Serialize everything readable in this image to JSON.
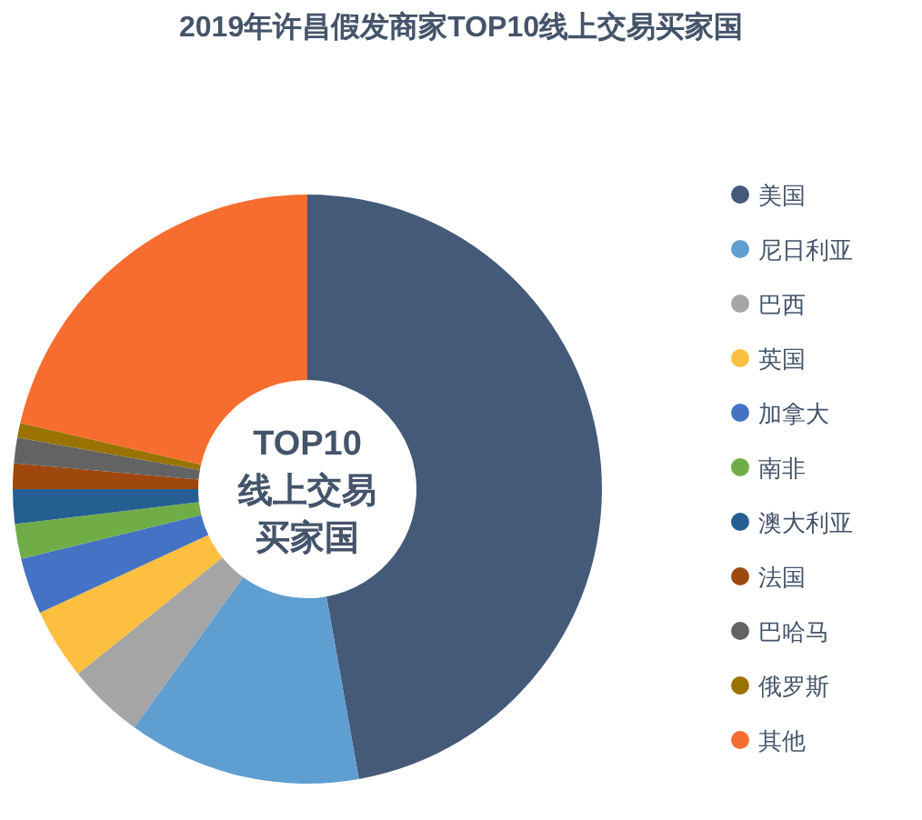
{
  "chart_data": {
    "type": "donut",
    "title": "2019年许昌假发商家TOP10线上交易买家国",
    "categories": [
      "美国",
      "尼日利亚",
      "巴西",
      "英国",
      "加拿大",
      "南非",
      "澳大利亚",
      "法国",
      "巴哈马",
      "俄罗斯",
      "其他"
    ],
    "values": [
      47.2,
      12.8,
      4.2,
      3.9,
      3.1,
      1.9,
      1.9,
      1.4,
      1.4,
      0.8,
      21.4
    ],
    "colors": [
      "#455a78",
      "#5f9ed1",
      "#a5a5a5",
      "#fcbf40",
      "#4472c4",
      "#70ad47",
      "#255e91",
      "#9e480e",
      "#636363",
      "#997300",
      "#f76d2f"
    ],
    "annotations": [
      "TOP10",
      "线上交易",
      "买家国"
    ],
    "legend": "right"
  }
}
